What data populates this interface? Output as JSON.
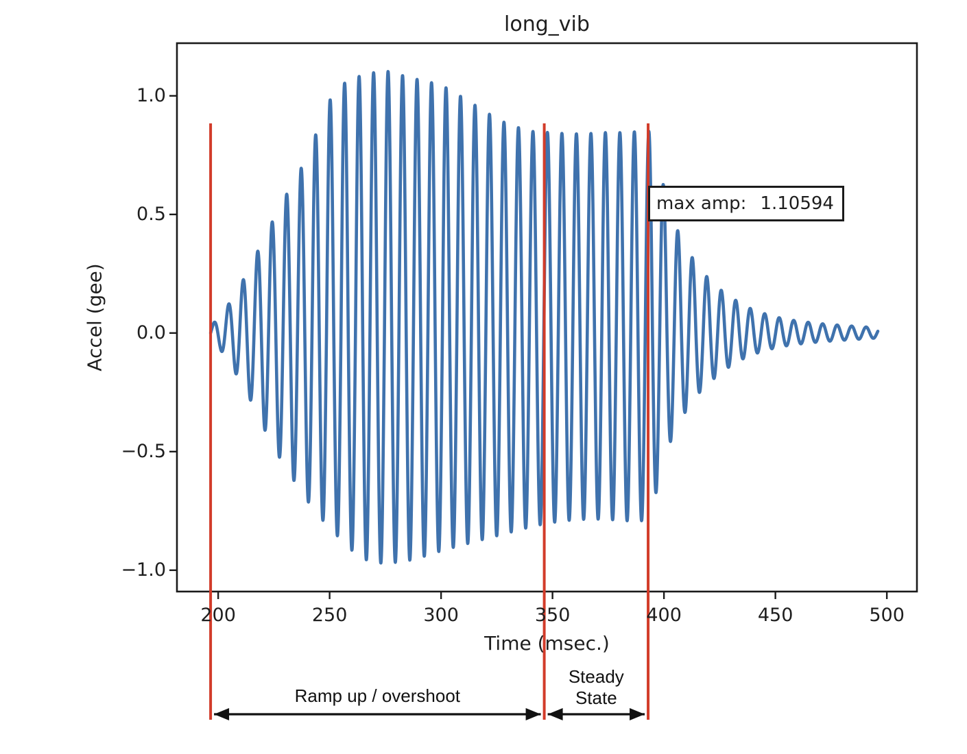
{
  "figure": {
    "title": "long_vib",
    "xlabel": "Time (msec.)",
    "ylabel": "Accel (gee)"
  },
  "annotation_box": {
    "label": "max amp:",
    "value": "1.10594"
  },
  "region_annotations": {
    "ramp_label": "Ramp up / overshoot",
    "steady_label_line1": "Steady",
    "steady_label_line2": "State"
  },
  "colors": {
    "line": "#3f72ad",
    "marker_line": "#d23c2a",
    "frame": "#1b1b1b",
    "arrow": "#111111",
    "text": "#1e1e1e"
  },
  "chart_data": {
    "type": "line",
    "title": "long_vib",
    "xlabel": "Time (msec.)",
    "ylabel": "Accel (gee)",
    "xlim": [
      181.5,
      513.5
    ],
    "ylim": [
      -1.09,
      1.222
    ],
    "grid": false,
    "x_ticks": [
      {
        "v": 200,
        "label": "200"
      },
      {
        "v": 250,
        "label": "250"
      },
      {
        "v": 300,
        "label": "300"
      },
      {
        "v": 350,
        "label": "350"
      },
      {
        "v": 400,
        "label": "400"
      },
      {
        "v": 450,
        "label": "450"
      },
      {
        "v": 500,
        "label": "500"
      }
    ],
    "y_ticks": [
      {
        "v": 1.0,
        "label": "1.0"
      },
      {
        "v": 0.5,
        "label": "0.5"
      },
      {
        "v": 0.0,
        "label": "0.0"
      },
      {
        "v": -0.5,
        "label": "−0.5"
      },
      {
        "v": -1.0,
        "label": "−1.0"
      }
    ],
    "max_amp": 1.10594,
    "marker_lines_x": [
      196.6,
      346.3,
      392.9
    ],
    "regions": [
      {
        "label": "Ramp up / overshoot",
        "from": 196.6,
        "to": 346.3
      },
      {
        "label": "Steady State",
        "from": 346.3,
        "to": 392.9
      }
    ],
    "signal": {
      "description": "vibration acceleration waveform: ramp up with overshoot to 1.10594 g, steady state near 0.85 g, then exponential ring-down to ~0.02 g by 496 msec",
      "t_start": 196.6,
      "t_end": 496,
      "period_msec": 6.5,
      "envelope_pos": [
        [
          196.6,
          0.03
        ],
        [
          201,
          0.07
        ],
        [
          206,
          0.14
        ],
        [
          211,
          0.22
        ],
        [
          216,
          0.31
        ],
        [
          221,
          0.41
        ],
        [
          226,
          0.5
        ],
        [
          231,
          0.59
        ],
        [
          236,
          0.67
        ],
        [
          241,
          0.77
        ],
        [
          246,
          0.89
        ],
        [
          251,
          1.0
        ],
        [
          256,
          1.05
        ],
        [
          261,
          1.075
        ],
        [
          266,
          1.09
        ],
        [
          271,
          1.1
        ],
        [
          275,
          1.106
        ],
        [
          281,
          1.09
        ],
        [
          287,
          1.075
        ],
        [
          293,
          1.06
        ],
        [
          299,
          1.05
        ],
        [
          305,
          1.02
        ],
        [
          311,
          0.985
        ],
        [
          317,
          0.95
        ],
        [
          323,
          0.915
        ],
        [
          329,
          0.885
        ],
        [
          335,
          0.865
        ],
        [
          341,
          0.85
        ],
        [
          349,
          0.845
        ],
        [
          357,
          0.84
        ],
        [
          365,
          0.84
        ],
        [
          373,
          0.845
        ],
        [
          381,
          0.845
        ],
        [
          389,
          0.85
        ],
        [
          395,
          0.85
        ],
        [
          399,
          0.65
        ],
        [
          404,
          0.48
        ],
        [
          409,
          0.37
        ],
        [
          414,
          0.3
        ],
        [
          419,
          0.24
        ],
        [
          425,
          0.185
        ],
        [
          431,
          0.145
        ],
        [
          437,
          0.11
        ],
        [
          443,
          0.088
        ],
        [
          449,
          0.07
        ],
        [
          456,
          0.056
        ],
        [
          464,
          0.046
        ],
        [
          472,
          0.038
        ],
        [
          480,
          0.032
        ],
        [
          488,
          0.027
        ],
        [
          496,
          0.022
        ]
      ],
      "envelope_neg": [
        [
          196.6,
          0.03
        ],
        [
          201,
          0.07
        ],
        [
          206,
          0.14
        ],
        [
          211,
          0.22
        ],
        [
          216,
          0.31
        ],
        [
          221,
          0.41
        ],
        [
          226,
          0.5
        ],
        [
          231,
          0.58
        ],
        [
          236,
          0.65
        ],
        [
          241,
          0.72
        ],
        [
          246,
          0.78
        ],
        [
          251,
          0.83
        ],
        [
          256,
          0.88
        ],
        [
          261,
          0.925
        ],
        [
          266,
          0.955
        ],
        [
          271,
          0.97
        ],
        [
          277,
          0.97
        ],
        [
          285,
          0.96
        ],
        [
          293,
          0.94
        ],
        [
          301,
          0.915
        ],
        [
          309,
          0.895
        ],
        [
          317,
          0.875
        ],
        [
          325,
          0.855
        ],
        [
          333,
          0.835
        ],
        [
          341,
          0.815
        ],
        [
          349,
          0.8
        ],
        [
          357,
          0.79
        ],
        [
          365,
          0.785
        ],
        [
          373,
          0.785
        ],
        [
          381,
          0.79
        ],
        [
          389,
          0.795
        ],
        [
          393,
          0.78
        ],
        [
          396,
          0.69
        ],
        [
          401,
          0.5
        ],
        [
          406,
          0.39
        ],
        [
          411,
          0.31
        ],
        [
          416,
          0.25
        ],
        [
          422,
          0.195
        ],
        [
          428,
          0.15
        ],
        [
          434,
          0.115
        ],
        [
          440,
          0.09
        ],
        [
          446,
          0.072
        ],
        [
          452,
          0.058
        ],
        [
          460,
          0.047
        ],
        [
          468,
          0.039
        ],
        [
          476,
          0.033
        ],
        [
          484,
          0.028
        ],
        [
          496,
          0.021
        ]
      ]
    }
  }
}
